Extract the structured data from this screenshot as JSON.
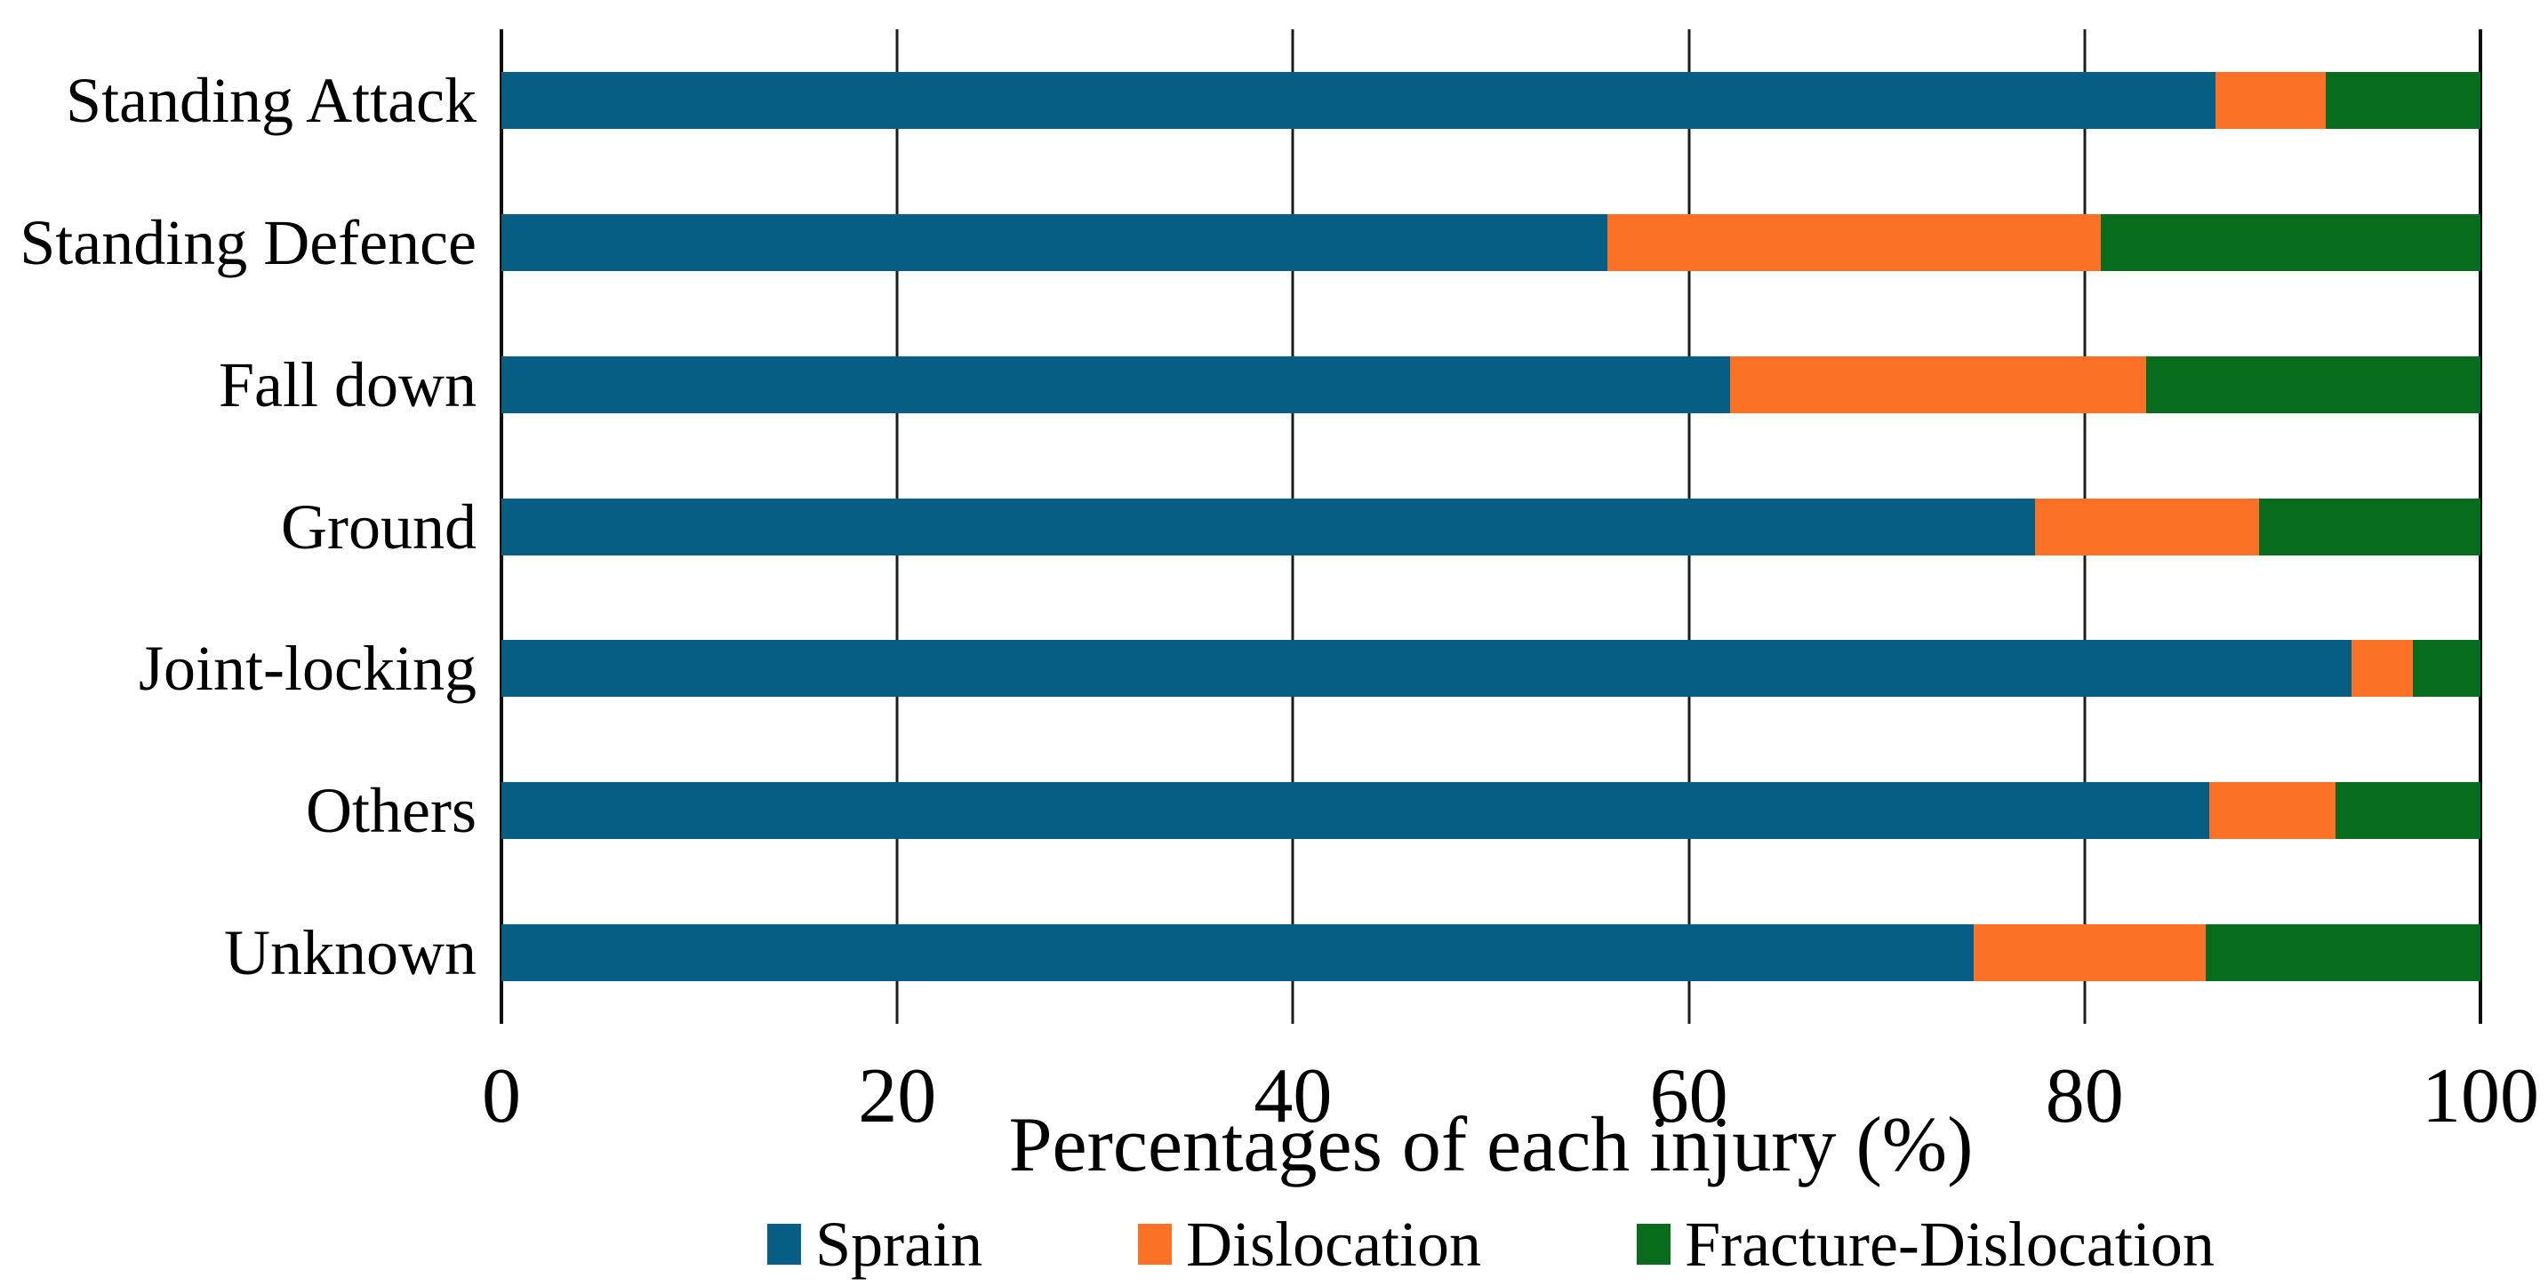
{
  "figure": {
    "background": "#ffffff",
    "text_color": "#000000",
    "gridline_color": "#1c1c1c"
  },
  "chart_data": {
    "type": "bar",
    "orientation": "horizontal",
    "stacked": true,
    "title": "",
    "xlabel": "Percentages of each injury (%)",
    "ylabel": "",
    "xlim": [
      0,
      100
    ],
    "x_ticks": [
      0,
      20,
      40,
      60,
      80,
      100
    ],
    "grid": "vertical",
    "legend_position": "bottom",
    "categories": [
      "Standing Attack",
      "Standing Defence",
      "Fall down",
      "Ground",
      "Joint-locking",
      "Others",
      "Unknown"
    ],
    "series": [
      {
        "name": "Sprain",
        "color": "#075E84",
        "values": [
          86.6,
          55.9,
          62.1,
          77.5,
          93.5,
          86.3,
          74.4
        ]
      },
      {
        "name": "Dislocation",
        "color": "#FB7126",
        "values": [
          5.6,
          24.9,
          21.0,
          11.3,
          3.1,
          6.4,
          11.7
        ]
      },
      {
        "name": "Fracture-Dislocation",
        "color": "#076D1C",
        "values": [
          7.8,
          19.2,
          16.9,
          11.2,
          3.4,
          7.3,
          13.9
        ]
      }
    ]
  }
}
